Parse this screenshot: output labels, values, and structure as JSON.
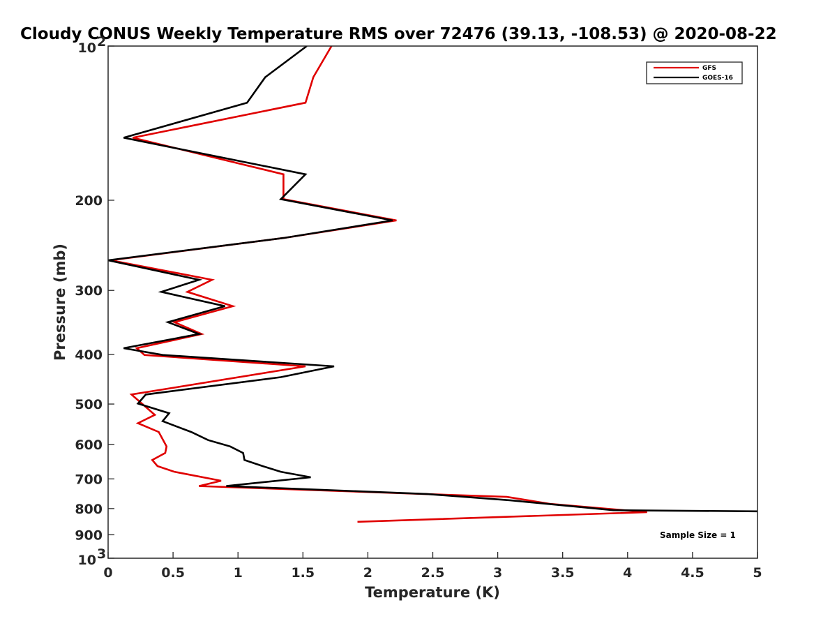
{
  "chart_data": {
    "type": "line",
    "title": "Cloudy CONUS Weekly Temperature RMS over 72476 (39.13, -108.53) @ 2020-08-22",
    "xlabel": "Temperature (K)",
    "ylabel": "Pressure (mb)",
    "xlim": [
      0,
      5
    ],
    "ylim": [
      100,
      1000
    ],
    "y_scale": "log",
    "y_reversed": true,
    "x_ticks": [
      "0",
      "0.5",
      "1",
      "1.5",
      "2",
      "2.5",
      "3",
      "3.5",
      "4",
      "4.5",
      "5"
    ],
    "y_ticks": [
      {
        "value": 100,
        "base": "10",
        "exp": "2"
      },
      {
        "value": 200,
        "label": "200"
      },
      {
        "value": 300,
        "label": "300"
      },
      {
        "value": 400,
        "label": "400"
      },
      {
        "value": 500,
        "label": "500"
      },
      {
        "value": 600,
        "label": "600"
      },
      {
        "value": 700,
        "label": "700"
      },
      {
        "value": 800,
        "label": "800"
      },
      {
        "value": 900,
        "label": "900"
      },
      {
        "value": 1000,
        "base": "10",
        "exp": "3"
      }
    ],
    "grid": false,
    "legend_position": "top-right",
    "annotation": "Sample Size = 1",
    "series": [
      {
        "name": "GFS",
        "color": "#e00000",
        "points": [
          [
            1.72,
            100
          ],
          [
            1.58,
            115
          ],
          [
            1.52,
            129
          ],
          [
            0.19,
            151
          ],
          [
            1.35,
            178
          ],
          [
            1.35,
            199
          ],
          [
            2.22,
            219
          ],
          [
            1.35,
            237
          ],
          [
            0.02,
            262
          ],
          [
            0.8,
            286
          ],
          [
            0.61,
            302
          ],
          [
            0.96,
            322
          ],
          [
            0.51,
            346
          ],
          [
            0.72,
            365
          ],
          [
            0.22,
            389
          ],
          [
            0.28,
            401
          ],
          [
            1.52,
            422
          ],
          [
            0.18,
            479
          ],
          [
            0.36,
            525
          ],
          [
            0.23,
            545
          ],
          [
            0.39,
            567
          ],
          [
            0.45,
            605
          ],
          [
            0.44,
            623
          ],
          [
            0.34,
            643
          ],
          [
            0.38,
            661
          ],
          [
            0.51,
            678
          ],
          [
            0.87,
            706
          ],
          [
            0.7,
            723
          ],
          [
            3.07,
            759
          ],
          [
            3.4,
            783
          ],
          [
            4.15,
            813
          ],
          [
            1.92,
            849
          ]
        ]
      },
      {
        "name": "GOES-16",
        "color": "#000000",
        "points": [
          [
            1.53,
            100
          ],
          [
            1.21,
            115
          ],
          [
            1.07,
            129
          ],
          [
            0.12,
            151
          ],
          [
            1.52,
            178
          ],
          [
            1.33,
            199
          ],
          [
            2.19,
            219
          ],
          [
            1.35,
            237
          ],
          [
            0.0,
            262
          ],
          [
            0.7,
            286
          ],
          [
            0.41,
            302
          ],
          [
            0.9,
            322
          ],
          [
            0.46,
            346
          ],
          [
            0.7,
            365
          ],
          [
            0.12,
            389
          ],
          [
            0.42,
            401
          ],
          [
            1.74,
            422
          ],
          [
            1.33,
            443
          ],
          [
            0.29,
            479
          ],
          [
            0.23,
            499
          ],
          [
            0.47,
            521
          ],
          [
            0.42,
            540
          ],
          [
            0.64,
            567
          ],
          [
            0.77,
            588
          ],
          [
            0.94,
            605
          ],
          [
            1.04,
            623
          ],
          [
            1.05,
            643
          ],
          [
            1.19,
            661
          ],
          [
            1.33,
            678
          ],
          [
            1.56,
            695
          ],
          [
            0.91,
            723
          ],
          [
            2.45,
            749
          ],
          [
            3.1,
            771
          ],
          [
            3.89,
            806
          ],
          [
            5.0,
            810
          ]
        ]
      }
    ]
  }
}
